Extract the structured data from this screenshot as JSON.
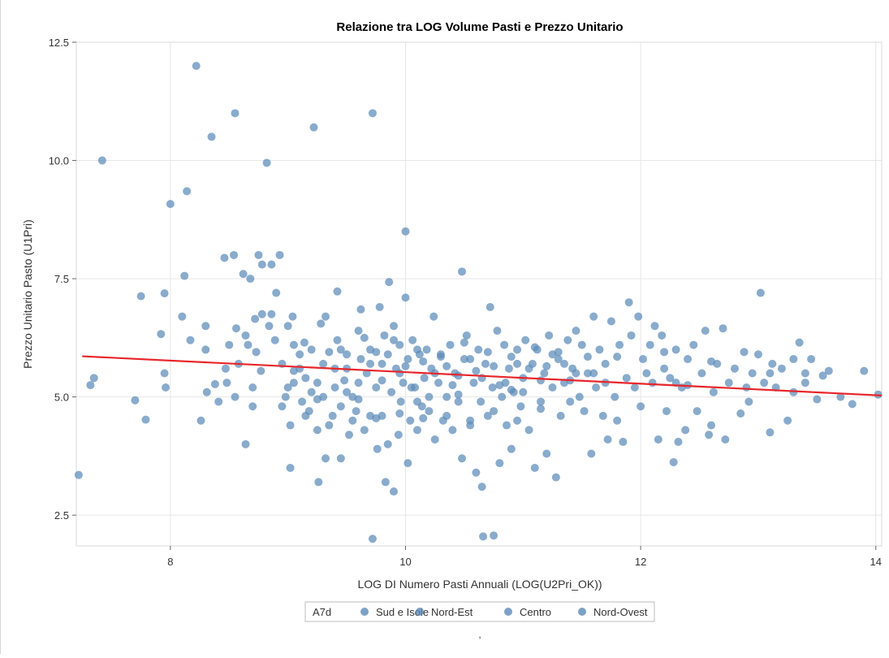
{
  "chart_data": {
    "type": "scatter",
    "title": "Relazione tra LOG Volume Pasti e Prezzo Unitario",
    "xlabel": "LOG DI Numero Pasti Annuali (LOG(U2Pri_OK))",
    "ylabel": "Prezzo Unitario Pasto (U1Pri)",
    "xlim": [
      7.2,
      14.05
    ],
    "ylim": [
      1.85,
      12.5
    ],
    "x_ticks": [
      8,
      10,
      12,
      14
    ],
    "y_ticks": [
      2.5,
      5.0,
      7.5,
      10.0,
      12.5
    ],
    "x_tick_labels": [
      "8",
      "10",
      "12",
      "14"
    ],
    "y_tick_labels": [
      "2.5",
      "5.0",
      "7.5",
      "10.0",
      "12.5"
    ],
    "grid": true,
    "legend_position": "bottom",
    "legend_title": "A7d",
    "legend": [
      "Sud e Isole",
      "Nord-Est",
      "Centro",
      "Nord-Ovest"
    ],
    "point_color": "#5b8ab8",
    "trend_color": "#e8262a",
    "trend_line": {
      "x": [
        7.25,
        14.05
      ],
      "y": [
        5.86,
        5.03
      ]
    },
    "footnote": ",",
    "points": [
      [
        7.22,
        3.35
      ],
      [
        7.32,
        5.25
      ],
      [
        7.35,
        5.4
      ],
      [
        7.42,
        10.0
      ],
      [
        7.7,
        4.93
      ],
      [
        7.75,
        7.13
      ],
      [
        7.79,
        4.52
      ],
      [
        7.92,
        6.33
      ],
      [
        7.95,
        7.19
      ],
      [
        7.95,
        5.5
      ],
      [
        7.96,
        5.2
      ],
      [
        8.0,
        9.08
      ],
      [
        8.1,
        6.7
      ],
      [
        8.12,
        7.56
      ],
      [
        8.14,
        9.35
      ],
      [
        8.17,
        6.2
      ],
      [
        8.22,
        12.0
      ],
      [
        8.26,
        4.5
      ],
      [
        8.3,
        6.0
      ],
      [
        8.3,
        6.5
      ],
      [
        8.31,
        5.1
      ],
      [
        8.35,
        10.5
      ],
      [
        8.38,
        5.27
      ],
      [
        8.41,
        4.9
      ],
      [
        8.46,
        7.94
      ],
      [
        8.47,
        5.6
      ],
      [
        8.48,
        5.3
      ],
      [
        8.5,
        6.1
      ],
      [
        8.55,
        11.0
      ],
      [
        8.54,
        8.0
      ],
      [
        8.55,
        5.0
      ],
      [
        8.56,
        6.45
      ],
      [
        8.58,
        5.7
      ],
      [
        8.62,
        7.6
      ],
      [
        8.64,
        6.3
      ],
      [
        8.64,
        4.0
      ],
      [
        8.66,
        6.1
      ],
      [
        8.68,
        7.5
      ],
      [
        8.7,
        5.2
      ],
      [
        8.7,
        4.8
      ],
      [
        8.72,
        6.65
      ],
      [
        8.73,
        5.95
      ],
      [
        8.75,
        8.0
      ],
      [
        8.77,
        5.55
      ],
      [
        8.78,
        7.8
      ],
      [
        8.78,
        6.75
      ],
      [
        8.82,
        9.95
      ],
      [
        8.84,
        6.5
      ],
      [
        8.86,
        7.8
      ],
      [
        8.86,
        6.75
      ],
      [
        8.89,
        6.2
      ],
      [
        8.9,
        7.2
      ],
      [
        8.93,
        8.0
      ],
      [
        8.95,
        4.8
      ],
      [
        8.98,
        5.0
      ],
      [
        9.0,
        6.5
      ],
      [
        9.0,
        5.2
      ],
      [
        9.02,
        4.4
      ],
      [
        9.02,
        3.5
      ],
      [
        9.04,
        6.7
      ],
      [
        9.05,
        5.55
      ],
      [
        9.05,
        6.1
      ],
      [
        9.1,
        5.9
      ],
      [
        9.12,
        4.9
      ],
      [
        9.14,
        6.15
      ],
      [
        9.15,
        5.4
      ],
      [
        9.18,
        4.7
      ],
      [
        9.2,
        6.0
      ],
      [
        9.22,
        10.7
      ],
      [
        9.25,
        5.3
      ],
      [
        9.25,
        4.3
      ],
      [
        9.26,
        3.2
      ],
      [
        9.28,
        6.55
      ],
      [
        9.3,
        5.0
      ],
      [
        9.32,
        6.7
      ],
      [
        9.32,
        3.7
      ],
      [
        9.35,
        5.95
      ],
      [
        9.38,
        4.6
      ],
      [
        9.4,
        5.6
      ],
      [
        9.42,
        7.23
      ],
      [
        9.42,
        6.2
      ],
      [
        9.45,
        4.8
      ],
      [
        9.45,
        3.7
      ],
      [
        9.48,
        5.35
      ],
      [
        9.5,
        5.9
      ],
      [
        9.52,
        4.2
      ],
      [
        9.55,
        5.0
      ],
      [
        9.58,
        4.7
      ],
      [
        9.6,
        6.4
      ],
      [
        9.62,
        5.8
      ],
      [
        9.62,
        6.85
      ],
      [
        9.65,
        4.3
      ],
      [
        9.67,
        5.5
      ],
      [
        9.7,
        6.0
      ],
      [
        9.7,
        4.6
      ],
      [
        9.72,
        11.0
      ],
      [
        9.72,
        2.0
      ],
      [
        9.75,
        5.2
      ],
      [
        9.76,
        3.9
      ],
      [
        9.78,
        6.9
      ],
      [
        9.8,
        5.7
      ],
      [
        9.8,
        4.6
      ],
      [
        9.82,
        6.3
      ],
      [
        9.83,
        3.2
      ],
      [
        9.85,
        4.0
      ],
      [
        9.86,
        7.43
      ],
      [
        9.88,
        5.1
      ],
      [
        9.9,
        6.5
      ],
      [
        9.9,
        3.0
      ],
      [
        9.92,
        5.6
      ],
      [
        9.94,
        4.2
      ],
      [
        9.95,
        6.1
      ],
      [
        9.96,
        4.9
      ],
      [
        9.98,
        5.3
      ],
      [
        10.0,
        8.5
      ],
      [
        10.0,
        7.1
      ],
      [
        10.02,
        3.6
      ],
      [
        10.02,
        5.8
      ],
      [
        10.04,
        4.5
      ],
      [
        10.06,
        6.2
      ],
      [
        10.08,
        5.2
      ],
      [
        10.1,
        4.3
      ],
      [
        10.12,
        5.9
      ],
      [
        10.14,
        4.8
      ],
      [
        10.16,
        5.4
      ],
      [
        10.18,
        6.0
      ],
      [
        10.2,
        4.7
      ],
      [
        10.22,
        5.6
      ],
      [
        10.24,
        6.7
      ],
      [
        10.25,
        4.1
      ],
      [
        10.28,
        5.3
      ],
      [
        10.3,
        5.9
      ],
      [
        10.32,
        4.5
      ],
      [
        10.35,
        5.0
      ],
      [
        10.38,
        6.1
      ],
      [
        10.4,
        4.3
      ],
      [
        10.42,
        5.5
      ],
      [
        10.45,
        4.9
      ],
      [
        10.48,
        7.65
      ],
      [
        10.48,
        3.7
      ],
      [
        10.5,
        5.8
      ],
      [
        10.52,
        6.3
      ],
      [
        10.55,
        4.5
      ],
      [
        10.58,
        5.3
      ],
      [
        10.6,
        3.4
      ],
      [
        10.62,
        6.0
      ],
      [
        10.64,
        4.9
      ],
      [
        10.65,
        3.1
      ],
      [
        10.66,
        2.05
      ],
      [
        10.68,
        5.7
      ],
      [
        10.7,
        4.6
      ],
      [
        10.72,
        6.9
      ],
      [
        10.74,
        5.2
      ],
      [
        10.75,
        2.07
      ],
      [
        10.78,
        6.4
      ],
      [
        10.8,
        3.6
      ],
      [
        10.82,
        5.0
      ],
      [
        10.84,
        6.1
      ],
      [
        10.86,
        4.4
      ],
      [
        10.88,
        5.6
      ],
      [
        10.9,
        3.9
      ],
      [
        10.92,
        5.1
      ],
      [
        10.95,
        6.0
      ],
      [
        10.98,
        4.8
      ],
      [
        11.0,
        5.4
      ],
      [
        11.02,
        6.2
      ],
      [
        11.05,
        4.3
      ],
      [
        11.08,
        5.7
      ],
      [
        11.1,
        3.5
      ],
      [
        11.12,
        6.0
      ],
      [
        11.15,
        4.9
      ],
      [
        11.18,
        5.5
      ],
      [
        11.2,
        3.8
      ],
      [
        11.22,
        6.3
      ],
      [
        11.25,
        5.2
      ],
      [
        11.28,
        3.3
      ],
      [
        11.3,
        5.8
      ],
      [
        11.32,
        4.6
      ],
      [
        11.35,
        5.3
      ],
      [
        11.38,
        6.2
      ],
      [
        11.4,
        4.9
      ],
      [
        11.42,
        5.6
      ],
      [
        11.45,
        6.4
      ],
      [
        11.48,
        5.0
      ],
      [
        11.5,
        6.1
      ],
      [
        11.52,
        4.7
      ],
      [
        11.55,
        5.5
      ],
      [
        11.58,
        3.8
      ],
      [
        11.6,
        6.7
      ],
      [
        11.62,
        5.2
      ],
      [
        11.65,
        6.0
      ],
      [
        11.68,
        4.6
      ],
      [
        11.7,
        5.7
      ],
      [
        11.72,
        4.1
      ],
      [
        11.75,
        6.6
      ],
      [
        11.78,
        5.0
      ],
      [
        11.8,
        4.5
      ],
      [
        11.82,
        6.1
      ],
      [
        11.85,
        4.05
      ],
      [
        11.88,
        5.4
      ],
      [
        11.9,
        7.0
      ],
      [
        11.92,
        6.3
      ],
      [
        11.95,
        5.2
      ],
      [
        11.98,
        6.7
      ],
      [
        12.0,
        4.8
      ],
      [
        12.02,
        5.8
      ],
      [
        12.05,
        5.5
      ],
      [
        12.08,
        6.1
      ],
      [
        12.1,
        5.3
      ],
      [
        12.12,
        6.5
      ],
      [
        12.15,
        4.1
      ],
      [
        12.18,
        6.3
      ],
      [
        12.2,
        5.6
      ],
      [
        12.22,
        4.7
      ],
      [
        12.25,
        5.4
      ],
      [
        12.28,
        3.62
      ],
      [
        12.3,
        6.0
      ],
      [
        12.32,
        4.05
      ],
      [
        12.35,
        5.2
      ],
      [
        12.38,
        4.3
      ],
      [
        12.4,
        5.8
      ],
      [
        12.45,
        6.1
      ],
      [
        12.48,
        4.7
      ],
      [
        12.52,
        5.5
      ],
      [
        12.55,
        6.4
      ],
      [
        12.58,
        4.2
      ],
      [
        12.6,
        4.4
      ],
      [
        12.62,
        5.1
      ],
      [
        12.65,
        5.7
      ],
      [
        12.7,
        6.45
      ],
      [
        12.72,
        4.1
      ],
      [
        12.75,
        5.3
      ],
      [
        12.8,
        5.6
      ],
      [
        12.85,
        4.65
      ],
      [
        12.88,
        5.95
      ],
      [
        12.9,
        5.2
      ],
      [
        12.92,
        4.9
      ],
      [
        12.95,
        5.5
      ],
      [
        13.0,
        5.9
      ],
      [
        13.02,
        7.2
      ],
      [
        13.05,
        5.3
      ],
      [
        13.1,
        4.25
      ],
      [
        13.12,
        5.7
      ],
      [
        13.15,
        5.2
      ],
      [
        13.2,
        5.6
      ],
      [
        13.25,
        4.5
      ],
      [
        13.3,
        5.8
      ],
      [
        13.35,
        6.15
      ],
      [
        13.4,
        5.5
      ],
      [
        13.45,
        5.8
      ],
      [
        13.5,
        4.95
      ],
      [
        13.55,
        5.45
      ],
      [
        13.6,
        5.55
      ],
      [
        13.7,
        5.0
      ],
      [
        13.8,
        4.85
      ],
      [
        13.9,
        5.55
      ],
      [
        14.02,
        5.05
      ],
      [
        9.6,
        5.3
      ],
      [
        9.7,
        5.7
      ],
      [
        9.85,
        5.9
      ],
      [
        9.95,
        5.5
      ],
      [
        10.05,
        5.2
      ],
      [
        10.15,
        5.75
      ],
      [
        10.25,
        5.5
      ],
      [
        10.35,
        5.65
      ],
      [
        10.45,
        5.45
      ],
      [
        10.55,
        5.8
      ],
      [
        10.65,
        5.4
      ],
      [
        10.75,
        5.65
      ],
      [
        10.85,
        5.3
      ],
      [
        10.95,
        5.7
      ],
      [
        11.05,
        5.6
      ],
      [
        11.15,
        5.35
      ],
      [
        11.25,
        5.9
      ],
      [
        11.35,
        5.7
      ],
      [
        11.45,
        5.5
      ],
      [
        11.55,
        5.85
      ],
      [
        9.3,
        5.7
      ],
      [
        9.4,
        5.2
      ],
      [
        9.5,
        5.6
      ],
      [
        9.2,
        5.1
      ],
      [
        9.1,
        5.6
      ],
      [
        9.6,
        4.95
      ],
      [
        9.8,
        5.35
      ],
      [
        10.0,
        5.65
      ],
      [
        10.2,
        5.0
      ],
      [
        10.4,
        5.25
      ],
      [
        10.6,
        5.55
      ],
      [
        10.8,
        5.25
      ],
      [
        11.0,
        5.1
      ],
      [
        11.2,
        5.65
      ],
      [
        11.4,
        5.35
      ],
      [
        9.45,
        6.0
      ],
      [
        9.65,
        6.25
      ],
      [
        9.75,
        5.95
      ],
      [
        9.9,
        6.2
      ],
      [
        10.1,
        6.0
      ],
      [
        10.3,
        5.85
      ],
      [
        10.5,
        6.15
      ],
      [
        10.7,
        5.95
      ],
      [
        10.9,
        5.85
      ],
      [
        11.1,
        6.05
      ],
      [
        11.3,
        5.95
      ],
      [
        9.35,
        4.4
      ],
      [
        9.55,
        4.5
      ],
      [
        9.75,
        4.55
      ],
      [
        9.95,
        4.65
      ],
      [
        10.15,
        4.55
      ],
      [
        10.35,
        4.6
      ],
      [
        10.55,
        4.4
      ],
      [
        10.75,
        4.7
      ],
      [
        10.95,
        4.5
      ],
      [
        11.15,
        4.75
      ],
      [
        9.25,
        4.95
      ],
      [
        9.15,
        4.6
      ],
      [
        9.05,
        5.3
      ],
      [
        8.95,
        5.7
      ],
      [
        9.5,
        5.1
      ],
      [
        10.1,
        4.9
      ],
      [
        10.45,
        5.05
      ],
      [
        10.9,
        5.15
      ],
      [
        11.6,
        5.5
      ],
      [
        11.7,
        5.3
      ],
      [
        11.8,
        5.85
      ],
      [
        12.4,
        5.25
      ],
      [
        12.6,
        5.75
      ],
      [
        12.2,
        5.95
      ],
      [
        12.3,
        5.3
      ],
      [
        13.1,
        5.5
      ],
      [
        13.3,
        5.1
      ],
      [
        13.4,
        5.3
      ]
    ]
  }
}
